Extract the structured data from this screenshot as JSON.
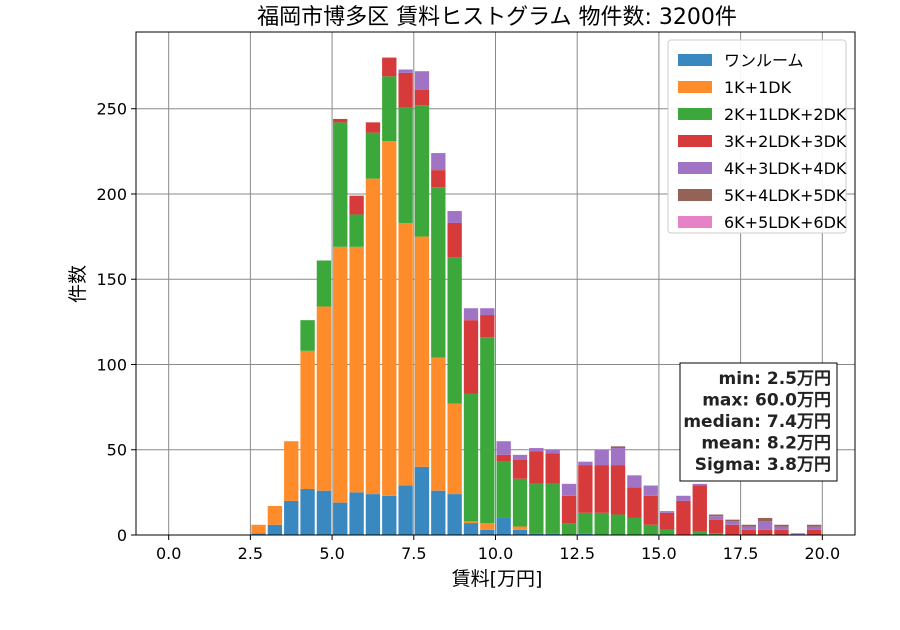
{
  "chart_data": {
    "type": "bar",
    "stacked": true,
    "title": "福岡市博多区 賃料ヒストグラム  物件数: 3200件",
    "xlabel": "賃料[万円]",
    "ylabel": "件数",
    "xlim": [
      -1.0,
      21.0
    ],
    "ylim": [
      0,
      295
    ],
    "grid": true,
    "legend_position": "top-right",
    "x_ticks": [
      "0.0",
      "2.5",
      "5.0",
      "7.5",
      "10.0",
      "12.5",
      "15.0",
      "17.5",
      "20.0"
    ],
    "y_ticks": [
      "0",
      "50",
      "100",
      "150",
      "200",
      "250"
    ],
    "bin_width": 0.5,
    "x": [
      2.5,
      3.0,
      3.5,
      4.0,
      4.5,
      5.0,
      5.5,
      6.0,
      6.5,
      7.0,
      7.5,
      8.0,
      8.5,
      9.0,
      9.5,
      10.0,
      10.5,
      11.0,
      11.5,
      12.0,
      12.5,
      13.0,
      13.5,
      14.0,
      14.5,
      15.0,
      15.5,
      16.0,
      16.5,
      17.0,
      17.5,
      18.0,
      18.5,
      19.0,
      19.5
    ],
    "series": [
      {
        "name": "ワンルーム",
        "color": "#3a88c0",
        "values": [
          1,
          6,
          20,
          27,
          26,
          19,
          25,
          24,
          23,
          29,
          40,
          26,
          24,
          7,
          3,
          10,
          3,
          1,
          1,
          0,
          1,
          0,
          0,
          0,
          0,
          0,
          0,
          0,
          0,
          0,
          0,
          0,
          0,
          0,
          0
        ]
      },
      {
        "name": "1K+1DK",
        "color": "#ff8c2a",
        "values": [
          5,
          11,
          35,
          81,
          108,
          150,
          144,
          185,
          208,
          154,
          135,
          78,
          53,
          1,
          4,
          0,
          2,
          0,
          0,
          0,
          0,
          0,
          0,
          0,
          0,
          0,
          0,
          0,
          0,
          0,
          0,
          0,
          0,
          0,
          0
        ]
      },
      {
        "name": "2K+1LDK+2DK",
        "color": "#3ca83c",
        "values": [
          0,
          0,
          0,
          18,
          27,
          73,
          19,
          27,
          38,
          68,
          77,
          100,
          86,
          75,
          109,
          33,
          28,
          29,
          29,
          7,
          12,
          13,
          12,
          10,
          6,
          3,
          0,
          2,
          1,
          0,
          0,
          0,
          0,
          0,
          0
        ]
      },
      {
        "name": "3K+2LDK+3DK",
        "color": "#d63a3a",
        "values": [
          0,
          0,
          0,
          0,
          0,
          2,
          11,
          6,
          11,
          20,
          9,
          10,
          20,
          43,
          13,
          4,
          11,
          19,
          18,
          16,
          28,
          28,
          29,
          18,
          17,
          10,
          20,
          27,
          8,
          6,
          3,
          3,
          3,
          0,
          3
        ]
      },
      {
        "name": "4K+3LDK+4DK",
        "color": "#a173c4",
        "values": [
          0,
          0,
          0,
          0,
          0,
          0,
          0,
          0,
          0,
          2,
          11,
          10,
          7,
          7,
          4,
          8,
          3,
          2,
          2,
          7,
          2,
          9,
          10,
          7,
          6,
          1,
          3,
          1,
          2,
          2,
          2,
          5,
          2,
          1,
          2
        ]
      },
      {
        "name": "5K+4LDK+5DK",
        "color": "#946256",
        "values": [
          0,
          0,
          0,
          0,
          0,
          0,
          0,
          0,
          0,
          0,
          0,
          0,
          0,
          0,
          0,
          0,
          0,
          0,
          0,
          0,
          0,
          0,
          1,
          0,
          0,
          0,
          0,
          0,
          1,
          1,
          1,
          2,
          1,
          0,
          1
        ]
      },
      {
        "name": "6K+5LDK+6DK",
        "color": "#e683c6",
        "values": [
          0,
          0,
          0,
          0,
          0,
          0,
          0,
          0,
          0,
          0,
          0,
          0,
          0,
          0,
          0,
          0,
          0,
          0,
          0,
          0,
          0,
          0,
          0,
          0,
          0,
          0,
          0,
          0,
          0,
          0,
          0,
          0,
          0,
          0,
          0
        ]
      }
    ],
    "stats": [
      "min: 2.5万円",
      "max: 60.0万円",
      "median: 7.4万円",
      "mean: 8.2万円",
      "Sigma: 3.8万円"
    ]
  }
}
